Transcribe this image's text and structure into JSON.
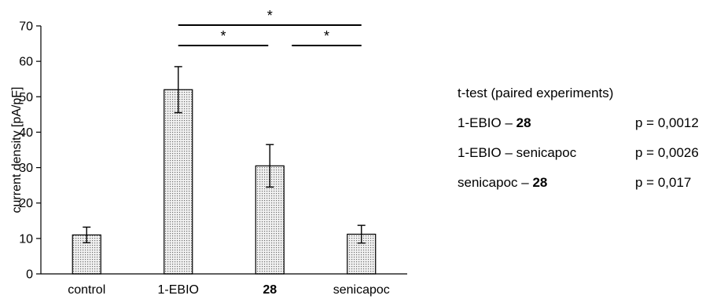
{
  "chart_data": {
    "type": "bar",
    "categories": [
      "control",
      "1-EBIO",
      "28",
      "senicapoc"
    ],
    "bold_categories": [
      "28"
    ],
    "values": [
      11.0,
      52.0,
      30.5,
      11.2
    ],
    "errors": [
      2.2,
      6.5,
      6.0,
      2.5
    ],
    "ylabel": "current density [pA/pF]",
    "xlabel": "",
    "ylim": [
      0,
      70
    ],
    "yticks": [
      "0",
      "10",
      "20",
      "30",
      "40",
      "50",
      "60",
      "70"
    ],
    "bar_fill": "dotted gray",
    "grid": false,
    "significance": [
      {
        "from": "1-EBIO",
        "to": "28",
        "label": "*"
      },
      {
        "from": "28",
        "to": "senicapoc",
        "label": "*"
      },
      {
        "from": "1-EBIO",
        "to": "senicapoc",
        "label": "*"
      }
    ]
  },
  "stats": {
    "title": "t-test (paired experiments)",
    "rows": [
      {
        "a": "1-EBIO",
        "sep": " – ",
        "b": "28",
        "bold": "b",
        "p": "p = 0,0012"
      },
      {
        "a": "1-EBIO",
        "sep": " – ",
        "b": "senicapoc",
        "bold": "",
        "p": "p = 0,0026"
      },
      {
        "a": "senicapoc",
        "sep": " – ",
        "b": "28",
        "bold": "b",
        "p": "p = 0,017"
      }
    ]
  }
}
